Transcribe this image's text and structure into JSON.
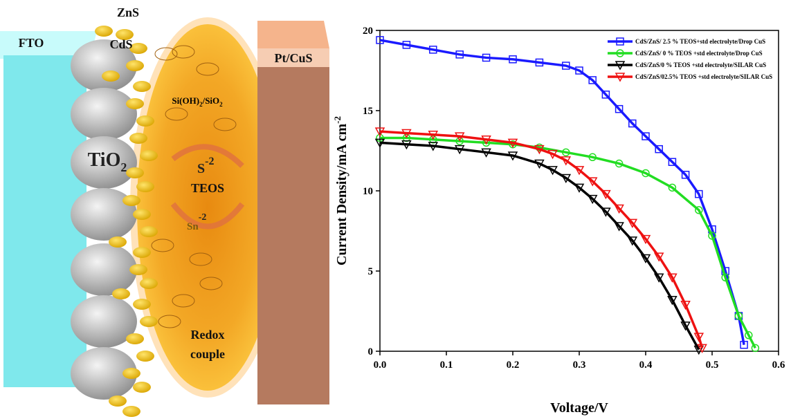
{
  "diagram": {
    "fto": "FTO",
    "zns": "ZnS",
    "cds": "CdS",
    "pt_cus": "Pt/CuS",
    "sioh": {
      "text": "Si(OH)",
      "sub": "2",
      "text2": "/SiO",
      "sub2": "2"
    },
    "tio2": {
      "text": "TiO",
      "sub": "2"
    },
    "s2": {
      "text": "S",
      "sup": "-2"
    },
    "teos": "TEOS",
    "sn2": {
      "text": "Sn",
      "sup": "-2"
    },
    "redox": "Redox",
    "couple": "couple"
  },
  "chart_data": {
    "type": "line",
    "x_label": "Voltage/V",
    "y_label": {
      "text": "Current Density/mA cm",
      "sup": "-2"
    },
    "xlim": [
      0,
      0.6
    ],
    "ylim": [
      0,
      20
    ],
    "xticks": [
      {
        "value": 0,
        "label": "0.0"
      },
      0.1,
      0.2,
      0.3,
      0.4,
      0.5,
      0.6
    ],
    "yticks": [
      0,
      5,
      10,
      15,
      20
    ],
    "legend": "top-right",
    "series": [
      {
        "name": "CdS/ZnS/ 2.5 % TEOS+std electrolyte/Drop CuS",
        "color": "#1a1aff",
        "marker": "square",
        "x": [
          0,
          0.04,
          0.08,
          0.12,
          0.16,
          0.2,
          0.24,
          0.28,
          0.3,
          0.32,
          0.34,
          0.36,
          0.38,
          0.4,
          0.42,
          0.44,
          0.46,
          0.48,
          0.5,
          0.52,
          0.54,
          0.548
        ],
        "values": [
          19.4,
          19.1,
          18.8,
          18.5,
          18.3,
          18.2,
          18.0,
          17.8,
          17.5,
          16.9,
          16.0,
          15.1,
          14.2,
          13.4,
          12.6,
          11.8,
          11.0,
          9.8,
          7.6,
          5.0,
          2.2,
          0.4
        ]
      },
      {
        "name": "CdS/ZnS/ 0 % TEOS +std electrolyte/Drop CuS",
        "color": "#22dd22",
        "marker": "circle",
        "x": [
          0,
          0.04,
          0.08,
          0.12,
          0.16,
          0.2,
          0.24,
          0.28,
          0.32,
          0.36,
          0.4,
          0.44,
          0.48,
          0.5,
          0.52,
          0.54,
          0.555,
          0.565
        ],
        "values": [
          13.3,
          13.3,
          13.2,
          13.1,
          13.0,
          12.9,
          12.7,
          12.4,
          12.1,
          11.7,
          11.1,
          10.2,
          8.8,
          7.2,
          4.6,
          2.2,
          1.0,
          0.2
        ]
      },
      {
        "name": "CdS/ZnS/0 % TEOS +std electrolyte/SILAR CuS",
        "color": "#000000",
        "marker": "triangle-down",
        "x": [
          0,
          0.04,
          0.08,
          0.12,
          0.16,
          0.2,
          0.24,
          0.26,
          0.28,
          0.3,
          0.32,
          0.34,
          0.36,
          0.38,
          0.4,
          0.42,
          0.44,
          0.46,
          0.48
        ],
        "values": [
          13.0,
          12.9,
          12.8,
          12.6,
          12.4,
          12.2,
          11.7,
          11.3,
          10.8,
          10.2,
          9.5,
          8.7,
          7.8,
          6.9,
          5.8,
          4.6,
          3.2,
          1.6,
          0.1
        ]
      },
      {
        "name": "CdS/ZnS/02.5% TEOS +std electrolyte/SILAR CuS",
        "color": "#ee1111",
        "marker": "triangle-down",
        "x": [
          0,
          0.04,
          0.08,
          0.12,
          0.16,
          0.2,
          0.24,
          0.26,
          0.28,
          0.3,
          0.32,
          0.34,
          0.36,
          0.38,
          0.4,
          0.42,
          0.44,
          0.46,
          0.48,
          0.485
        ],
        "values": [
          13.7,
          13.6,
          13.5,
          13.4,
          13.2,
          13.0,
          12.6,
          12.3,
          11.9,
          11.3,
          10.6,
          9.8,
          8.9,
          8.0,
          7.0,
          5.9,
          4.6,
          2.9,
          0.9,
          0.2
        ]
      }
    ]
  }
}
